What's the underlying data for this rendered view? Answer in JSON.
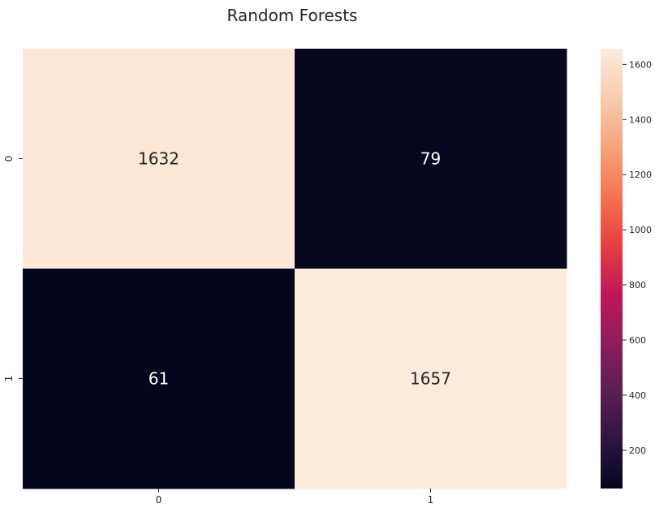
{
  "chart_data": {
    "type": "heatmap",
    "title": "Random Forests",
    "xlabel": "",
    "ylabel": "",
    "x_categories": [
      "0",
      "1"
    ],
    "y_categories": [
      "0",
      "1"
    ],
    "matrix": [
      [
        1632,
        79
      ],
      [
        61,
        1657
      ]
    ],
    "colorbar": {
      "vmin": 61,
      "vmax": 1657,
      "ticks": [
        200,
        400,
        600,
        800,
        1000,
        1200,
        1400,
        1600
      ],
      "tick_labels": [
        "200",
        "400",
        "600",
        "800",
        "1000",
        "1200",
        "1400",
        "1600"
      ],
      "colormap": "rocket",
      "stops": [
        "#03051a",
        "#2d1641",
        "#5c1e51",
        "#8e1d5b",
        "#c1185a",
        "#e83f3f",
        "#f37651",
        "#f6a47c",
        "#f8cdb0",
        "#faebdd"
      ]
    },
    "annotation_light_color": "#ffffff",
    "annotation_dark_color": "#262626",
    "grid": false
  }
}
